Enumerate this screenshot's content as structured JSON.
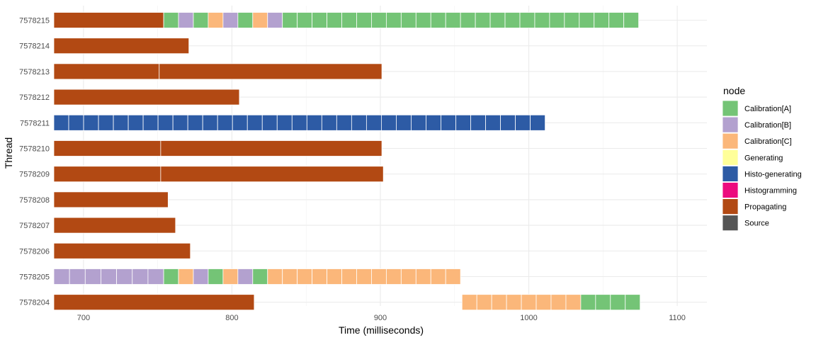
{
  "chart_data": {
    "type": "bar",
    "orientation": "horizontal-gantt",
    "xlabel": "Time (milliseconds)",
    "ylabel": "Thread",
    "xlim": [
      680,
      1120
    ],
    "xticks": [
      "700",
      "800",
      "900",
      "1000",
      "1100"
    ],
    "grid": true,
    "legend_position": "right",
    "legend_title": "node",
    "nodes": [
      {
        "name": "Calibration[A]",
        "color": "#74c476"
      },
      {
        "name": "Calibration[B]",
        "color": "#b3a1cf"
      },
      {
        "name": "Calibration[C]",
        "color": "#fbb77a"
      },
      {
        "name": "Generating",
        "color": "#ffff99"
      },
      {
        "name": "Histo-generating",
        "color": "#2d5ba5"
      },
      {
        "name": "Histogramming",
        "color": "#ec0b7e"
      },
      {
        "name": "Propagating",
        "color": "#b24913"
      },
      {
        "name": "Source",
        "color": "#555555"
      }
    ],
    "threads": [
      {
        "name": "7578215",
        "segments": [
          {
            "node": "Propagating",
            "start": 680,
            "end": 754
          },
          {
            "node": "Calibration[A]",
            "start": 754,
            "end": 764
          },
          {
            "node": "Calibration[B]",
            "start": 764,
            "end": 774
          },
          {
            "node": "Calibration[A]",
            "start": 774,
            "end": 784
          },
          {
            "node": "Calibration[C]",
            "start": 784,
            "end": 794
          },
          {
            "node": "Calibration[B]",
            "start": 794,
            "end": 804
          },
          {
            "node": "Calibration[A]",
            "start": 804,
            "end": 814
          },
          {
            "node": "Calibration[C]",
            "start": 814,
            "end": 824
          },
          {
            "node": "Calibration[B]",
            "start": 824,
            "end": 834
          },
          {
            "node": "Calibration[A]",
            "start": 834,
            "end": 1074,
            "blocks": 24
          }
        ]
      },
      {
        "name": "7578214",
        "segments": [
          {
            "node": "Propagating",
            "start": 680,
            "end": 771
          }
        ]
      },
      {
        "name": "7578213",
        "segments": [
          {
            "node": "Propagating",
            "start": 680,
            "end": 751
          },
          {
            "node": "Propagating",
            "start": 751,
            "end": 901
          }
        ]
      },
      {
        "name": "7578212",
        "segments": [
          {
            "node": "Propagating",
            "start": 680,
            "end": 805
          }
        ]
      },
      {
        "name": "7578211",
        "segments": [
          {
            "node": "Histo-generating",
            "start": 680,
            "end": 1011,
            "blocks": 33
          }
        ]
      },
      {
        "name": "7578210",
        "segments": [
          {
            "node": "Propagating",
            "start": 680,
            "end": 752
          },
          {
            "node": "Propagating",
            "start": 752,
            "end": 901
          }
        ]
      },
      {
        "name": "7578209",
        "segments": [
          {
            "node": "Propagating",
            "start": 680,
            "end": 752
          },
          {
            "node": "Propagating",
            "start": 752,
            "end": 902
          }
        ]
      },
      {
        "name": "7578208",
        "segments": [
          {
            "node": "Propagating",
            "start": 680,
            "end": 757
          }
        ]
      },
      {
        "name": "7578207",
        "segments": [
          {
            "node": "Propagating",
            "start": 680,
            "end": 762
          }
        ]
      },
      {
        "name": "7578206",
        "segments": [
          {
            "node": "Propagating",
            "start": 680,
            "end": 772
          }
        ]
      },
      {
        "name": "7578205",
        "segments": [
          {
            "node": "Calibration[B]",
            "start": 680,
            "end": 754,
            "blocks": 7
          },
          {
            "node": "Calibration[A]",
            "start": 754,
            "end": 764
          },
          {
            "node": "Calibration[C]",
            "start": 764,
            "end": 774
          },
          {
            "node": "Calibration[B]",
            "start": 774,
            "end": 784
          },
          {
            "node": "Calibration[A]",
            "start": 784,
            "end": 794
          },
          {
            "node": "Calibration[C]",
            "start": 794,
            "end": 804
          },
          {
            "node": "Calibration[B]",
            "start": 804,
            "end": 814
          },
          {
            "node": "Calibration[A]",
            "start": 814,
            "end": 824
          },
          {
            "node": "Calibration[C]",
            "start": 824,
            "end": 954,
            "blocks": 13
          }
        ]
      },
      {
        "name": "7578204",
        "segments": [
          {
            "node": "Propagating",
            "start": 680,
            "end": 815
          },
          {
            "node": "Calibration[C]",
            "start": 955,
            "end": 1035,
            "blocks": 8
          },
          {
            "node": "Calibration[A]",
            "start": 1035,
            "end": 1075,
            "blocks": 4
          }
        ]
      }
    ]
  }
}
